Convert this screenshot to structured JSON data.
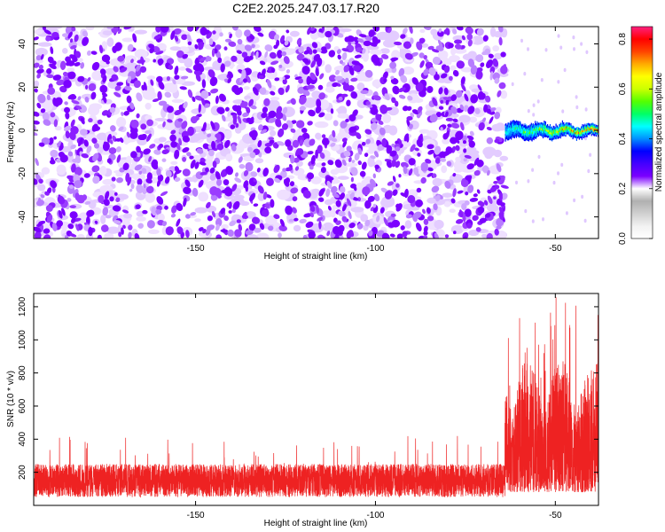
{
  "title": "C2E2.2025.247.03.17.R20",
  "colors": {
    "purple": "#7b00ff",
    "snr_line": "#ee2222",
    "colorbar": [
      "#ffffff",
      "#f2f2f2",
      "#d0d0d0",
      "#b0b0b0",
      "#ffffff",
      "#7b00ff",
      "#4400ff",
      "#0000ff",
      "#0090ff",
      "#00ffff",
      "#00ff66",
      "#55ff00",
      "#ccff00",
      "#ffff00",
      "#ffaa00",
      "#ff4400",
      "#ff0000",
      "#ff2080"
    ]
  },
  "chart_data": [
    {
      "type": "heatmap",
      "xlabel": "Height of straight line (km)",
      "ylabel": "Frequency (Hz)",
      "xlim": [
        -195,
        -38
      ],
      "ylim": [
        -50,
        48
      ],
      "xticks": [
        -150,
        -100,
        -50
      ],
      "xtick_labels": [
        "-150",
        "-100",
        "-50"
      ],
      "yticks": [
        -40,
        -20,
        0,
        20,
        40
      ],
      "ytick_labels": [
        "-40",
        "-20",
        "0",
        "20",
        "40"
      ],
      "noise_region_x": [
        -195,
        -64
      ],
      "signal_band": {
        "x_start": -64,
        "x_end": -38,
        "center_freq": 0,
        "half_width_hz": 3
      },
      "colorbar": {
        "label": "Normalized spectral amplitude",
        "range": [
          0,
          0.85
        ],
        "ticks": [
          0.0,
          0.2,
          0.4,
          0.6,
          0.8
        ],
        "tick_labels": [
          "0.0",
          "0.2",
          "0.4",
          "0.6",
          "0.8"
        ]
      }
    },
    {
      "type": "line",
      "xlabel": "Height of straight line (km)",
      "ylabel": "SNR (10 * v/v)",
      "xlim": [
        -195,
        -38
      ],
      "ylim": [
        0,
        1280
      ],
      "xticks": [
        -150,
        -100,
        -50
      ],
      "xtick_labels": [
        "-150",
        "-100",
        "-50"
      ],
      "yticks": [
        200,
        400,
        600,
        800,
        1000,
        1200
      ],
      "ytick_labels": [
        "200",
        "400",
        "600",
        "800",
        "1000",
        "1200"
      ],
      "segments": [
        {
          "x_start": -195,
          "x_end": -64,
          "typical_range": [
            50,
            250
          ],
          "spike_max": 420
        },
        {
          "x_start": -64,
          "x_end": -38,
          "typical_range": [
            80,
            900
          ],
          "spike_max": 1280
        }
      ]
    }
  ]
}
